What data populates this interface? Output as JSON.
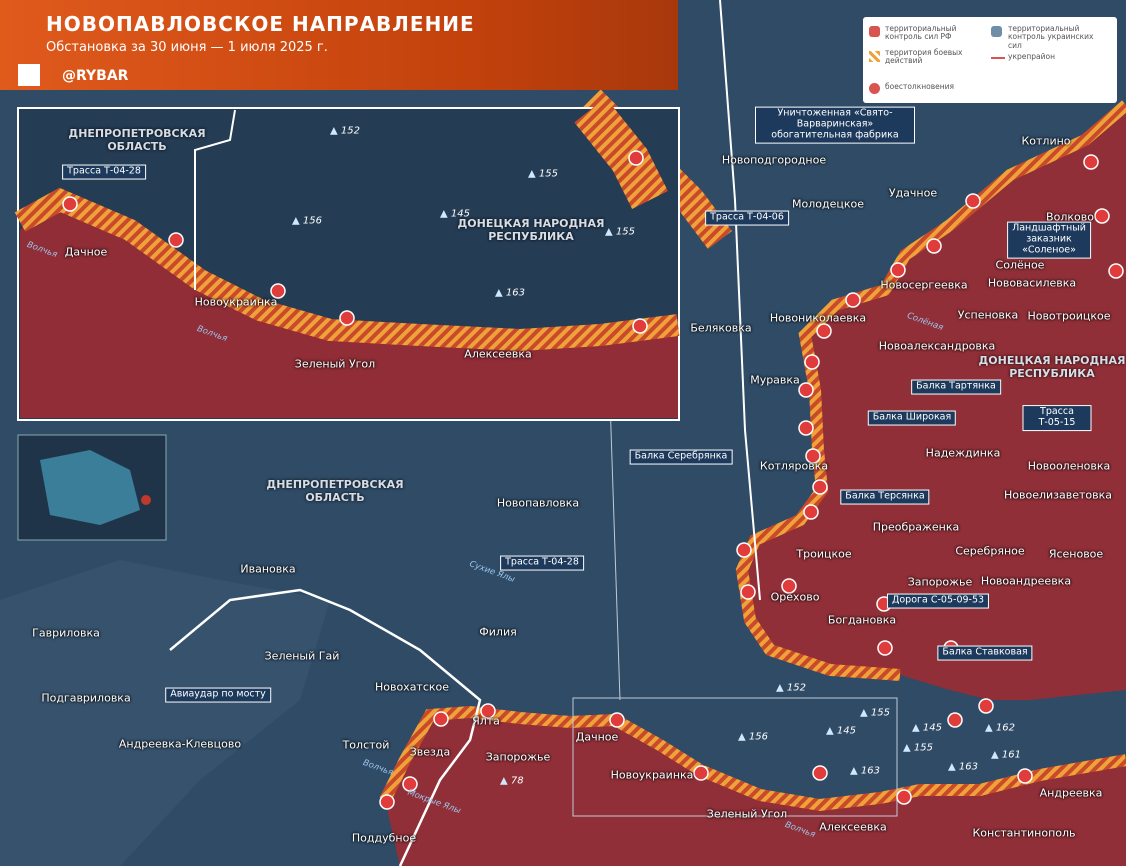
{
  "header": {
    "title": "НОВОПАВЛОВСКОЕ НАПРАВЛЕНИЕ",
    "subtitle": "Обстановка за 30 июня — 1 июля 2025 г.",
    "brand": "@RYBAR"
  },
  "legend": {
    "items": [
      "территориальный контроль сил РФ",
      "территориальный контроль украинских сил",
      "территория боевых действий",
      "укрепрайон",
      "боестолкновения"
    ]
  },
  "inset": {
    "regions": [
      "ДНЕПРОПЕТРОВСКАЯ ОБЛАСТЬ",
      "ДОНЕЦКАЯ НАРОДНАЯ РЕСПУБЛИКА"
    ],
    "settlements": [
      "Дачное",
      "Новоукраинка",
      "Зеленый Угол",
      "Алексеевка"
    ],
    "roads": [
      "Трасса Т-04-28"
    ],
    "heights": [
      "152",
      "155",
      "156",
      "145",
      "155",
      "163"
    ],
    "rivers": [
      "Волчья",
      "Волчья"
    ]
  },
  "map": {
    "regions": [
      "ДНЕПРОПЕТРОВСКАЯ ОБЛАСТЬ",
      "ДОНЕЦКАЯ НАРОДНАЯ РЕСПУБЛИКА"
    ],
    "settlements": [
      "Новоподгородное",
      "Молодецкое",
      "Удачное",
      "Котлино",
      "Волково",
      "Солёное",
      "Новосергеевка",
      "Нововасилевка",
      "Беляковка",
      "Новониколаевка",
      "Успеновка",
      "Новотроицкое",
      "Новоалександровка",
      "Муравка",
      "Надеждинка",
      "Новооленовка",
      "Котляровка",
      "Новоелизаветовка",
      "Преображенка",
      "Троицкое",
      "Серебряное",
      "Ясеновое",
      "Запорожье",
      "Новоандреевка",
      "Орехово",
      "Богдановка",
      "Новопавловка",
      "Ивановка",
      "Филия",
      "Гавриловка",
      "Зеленый Гай",
      "Новохатское",
      "Подгавриловка",
      "Андреевка-Клевцово",
      "Толстой",
      "Ялта",
      "Звезда",
      "Запорожье",
      "Дачное",
      "Новоукраинка",
      "Зеленый Угол",
      "Алексеевка",
      "Андреевка",
      "Константинополь",
      "Поддубное"
    ],
    "notes": [
      "Уничтоженная «Свято-Варваринская» обогатительная фабрика",
      "Трасса Т-04-06",
      "Ландшафтный заказник «Соленое»",
      "Балка Тартянка",
      "Балка Широкая",
      "Трасса Т-05-15",
      "Балка Серебрянка",
      "Балка Терсянка",
      "Трасса Т-04-28",
      "Дорога С-05-09-53",
      "Балка Ставковая",
      "Авиаудар по мосту"
    ],
    "heights": [
      "152",
      "156",
      "145",
      "155",
      "163",
      "145",
      "155",
      "162",
      "161",
      "163",
      "78"
    ],
    "rivers": [
      "Волчья",
      "Сухие Ялы",
      "Мокрые Ялы",
      "Солёная",
      "Волчья"
    ]
  }
}
